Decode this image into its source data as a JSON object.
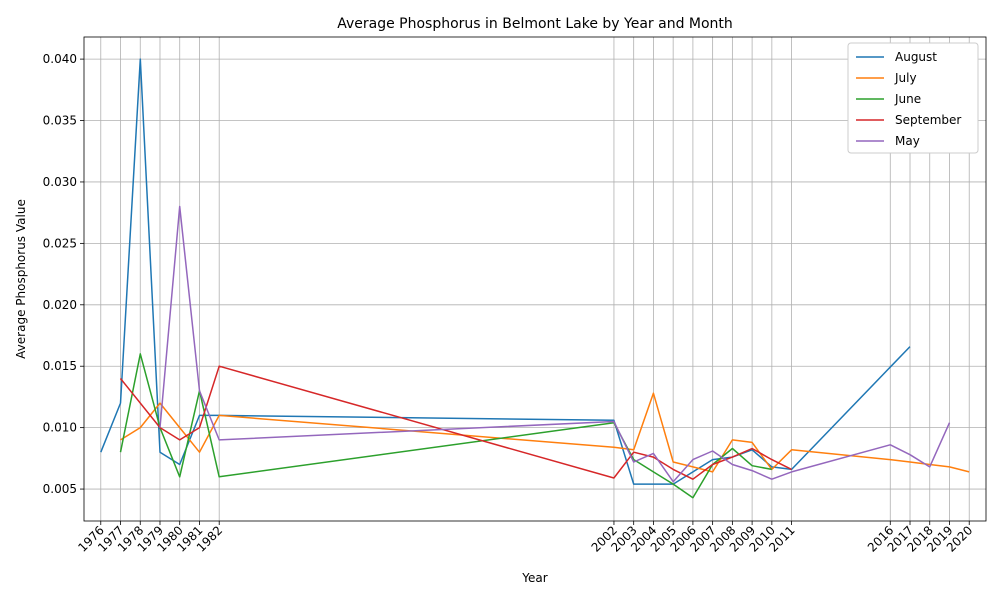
{
  "chart_data": {
    "type": "line",
    "title": "Average Phosphorus in Belmont Lake by Year and Month",
    "xlabel": "Year",
    "ylabel": "Average Phosphorus Value",
    "x_ticks": [
      1976,
      1977,
      1978,
      1979,
      1980,
      1981,
      1982,
      2002,
      2003,
      2004,
      2005,
      2006,
      2007,
      2008,
      2009,
      2010,
      2011,
      2016,
      2017,
      2018,
      2019,
      2020
    ],
    "xlim": [
      1975.15,
      2020.85
    ],
    "ylim": [
      0.0024,
      0.0418
    ],
    "y_ticks": [
      0.005,
      0.01,
      0.015,
      0.02,
      0.025,
      0.03,
      0.035,
      0.04
    ],
    "y_tick_labels": [
      "0.005",
      "0.010",
      "0.015",
      "0.020",
      "0.025",
      "0.030",
      "0.035",
      "0.040"
    ],
    "grid": true,
    "legend_position": "top-right",
    "series": [
      {
        "name": "August",
        "color": "#1f77b4",
        "x": [
          1976,
          1977,
          1978,
          1979,
          1980,
          1981,
          1982,
          2002,
          2003,
          2004,
          2005,
          2006,
          2007,
          2008,
          2009,
          2010,
          2011,
          2017
        ],
        "y": [
          0.008,
          0.012,
          0.04,
          0.008,
          0.007,
          0.011,
          0.011,
          0.0106,
          0.0054,
          0.0054,
          0.0054,
          0.0064,
          0.0074,
          0.0076,
          0.0082,
          0.0068,
          0.0066,
          0.0166
        ]
      },
      {
        "name": "July",
        "color": "#ff7f0e",
        "x": [
          1977,
          1978,
          1979,
          1980,
          1981,
          1982,
          2002,
          2003,
          2004,
          2005,
          2006,
          2007,
          2008,
          2009,
          2010,
          2011,
          2016,
          2017,
          2018,
          2019,
          2020
        ],
        "y": [
          0.009,
          0.01,
          0.012,
          0.01,
          0.008,
          0.011,
          0.0084,
          0.0082,
          0.0128,
          0.0072,
          0.0068,
          0.0064,
          0.009,
          0.0088,
          0.0066,
          0.0082,
          0.0074,
          0.0072,
          0.007,
          0.0068,
          0.0064
        ]
      },
      {
        "name": "June",
        "color": "#2ca02c",
        "x": [
          1977,
          1978,
          1979,
          1980,
          1981,
          1982,
          2002,
          2003,
          2004,
          2005,
          2006,
          2007,
          2008,
          2009,
          2010
        ],
        "y": [
          0.008,
          0.016,
          0.01,
          0.006,
          0.013,
          0.006,
          0.0104,
          0.0074,
          0.0064,
          0.0054,
          0.0043,
          0.007,
          0.0083,
          0.0069,
          0.0066
        ]
      },
      {
        "name": "September",
        "color": "#d62728",
        "x": [
          1977,
          1979,
          1980,
          1981,
          1982,
          2002,
          2003,
          2004,
          2005,
          2006,
          2007,
          2008,
          2009,
          2010,
          2011
        ],
        "y": [
          0.014,
          0.01,
          0.009,
          0.01,
          0.015,
          0.0059,
          0.008,
          0.0076,
          0.0066,
          0.0058,
          0.007,
          0.0076,
          0.0083,
          0.0074,
          0.0066
        ]
      },
      {
        "name": "May",
        "color": "#9467bd",
        "x": [
          1979,
          1980,
          1981,
          1982,
          2002,
          2003,
          2004,
          2005,
          2006,
          2007,
          2008,
          2009,
          2010,
          2011,
          2016,
          2017,
          2018,
          2019
        ],
        "y": [
          0.01,
          0.028,
          0.013,
          0.009,
          0.0105,
          0.0072,
          0.0079,
          0.0056,
          0.0074,
          0.0081,
          0.007,
          0.0065,
          0.0058,
          0.0064,
          0.0086,
          0.0078,
          0.0068,
          0.0104
        ]
      }
    ]
  }
}
